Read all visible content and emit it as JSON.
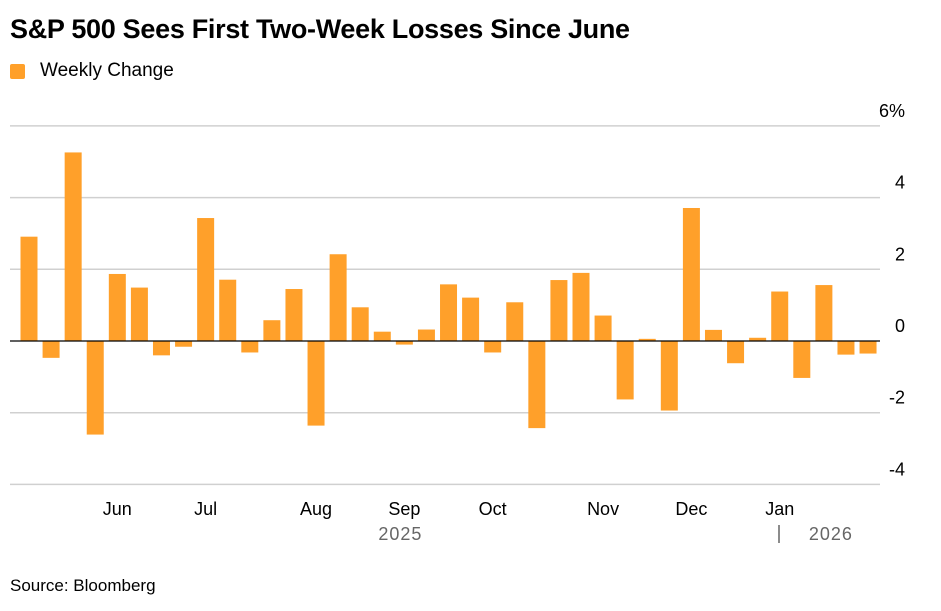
{
  "chart_data": {
    "type": "bar",
    "title": "S&P 500 Sees First Two-Week Losses Since June",
    "source": "Source: Bloomberg",
    "series": [
      {
        "name": "Weekly Change",
        "color": "#FFA02A",
        "x": [
          "2025-05-09",
          "2025-05-16",
          "2025-05-23",
          "2025-05-30",
          "2025-06-06",
          "2025-06-13",
          "2025-06-20",
          "2025-06-27",
          "2025-07-04",
          "2025-07-11",
          "2025-07-18",
          "2025-07-25",
          "2025-08-01",
          "2025-08-08",
          "2025-08-15",
          "2025-08-22",
          "2025-08-29",
          "2025-09-05",
          "2025-09-12",
          "2025-09-19",
          "2025-09-26",
          "2025-10-03",
          "2025-10-10",
          "2025-10-17",
          "2025-10-24",
          "2025-10-31",
          "2025-11-07",
          "2025-11-14",
          "2025-11-21",
          "2025-11-28",
          "2025-12-05",
          "2025-12-12",
          "2025-12-19",
          "2025-12-26",
          "2026-01-02",
          "2026-01-09",
          "2026-01-16",
          "2026-01-23",
          "2026-01-30"
        ],
        "values": [
          2.91,
          -0.47,
          5.26,
          -2.61,
          1.87,
          1.49,
          -0.4,
          -0.16,
          3.43,
          1.71,
          -0.32,
          0.58,
          1.45,
          -2.36,
          2.42,
          0.94,
          0.26,
          -0.1,
          0.32,
          1.58,
          1.21,
          -0.32,
          1.08,
          -2.43,
          1.7,
          1.9,
          0.71,
          -1.63,
          0.06,
          -1.94,
          3.71,
          0.31,
          -0.62,
          0.09,
          1.38,
          -1.03,
          1.56,
          -0.38,
          -0.35
        ]
      }
    ],
    "x_ticks": [
      {
        "at": "2025-06-06",
        "label": "Jun"
      },
      {
        "at": "2025-07-04",
        "label": "Jul"
      },
      {
        "at": "2025-08-08",
        "label": "Aug"
      },
      {
        "at": "2025-09-05",
        "label": "Sep"
      },
      {
        "at": "2025-10-03",
        "label": "Oct"
      },
      {
        "at": "2025-11-07",
        "label": "Nov"
      },
      {
        "at": "2025-12-05",
        "label": "Dec"
      },
      {
        "at": "2026-01-02",
        "label": "Jan"
      }
    ],
    "year_labels": [
      {
        "at": "2025-09-05",
        "label": "2025"
      },
      {
        "at": "2026-01-16",
        "label": "2026"
      }
    ],
    "y_ticks": [
      {
        "v": 6,
        "label": "6%"
      },
      {
        "v": 4,
        "label": "4"
      },
      {
        "v": 2,
        "label": "2"
      },
      {
        "v": 0,
        "label": "0"
      },
      {
        "v": -2,
        "label": "-2"
      },
      {
        "v": -4,
        "label": "-4"
      }
    ],
    "ylim": [
      -4,
      6
    ],
    "grid": true,
    "y_axis_side": "right",
    "legend_placement": "top-left"
  }
}
